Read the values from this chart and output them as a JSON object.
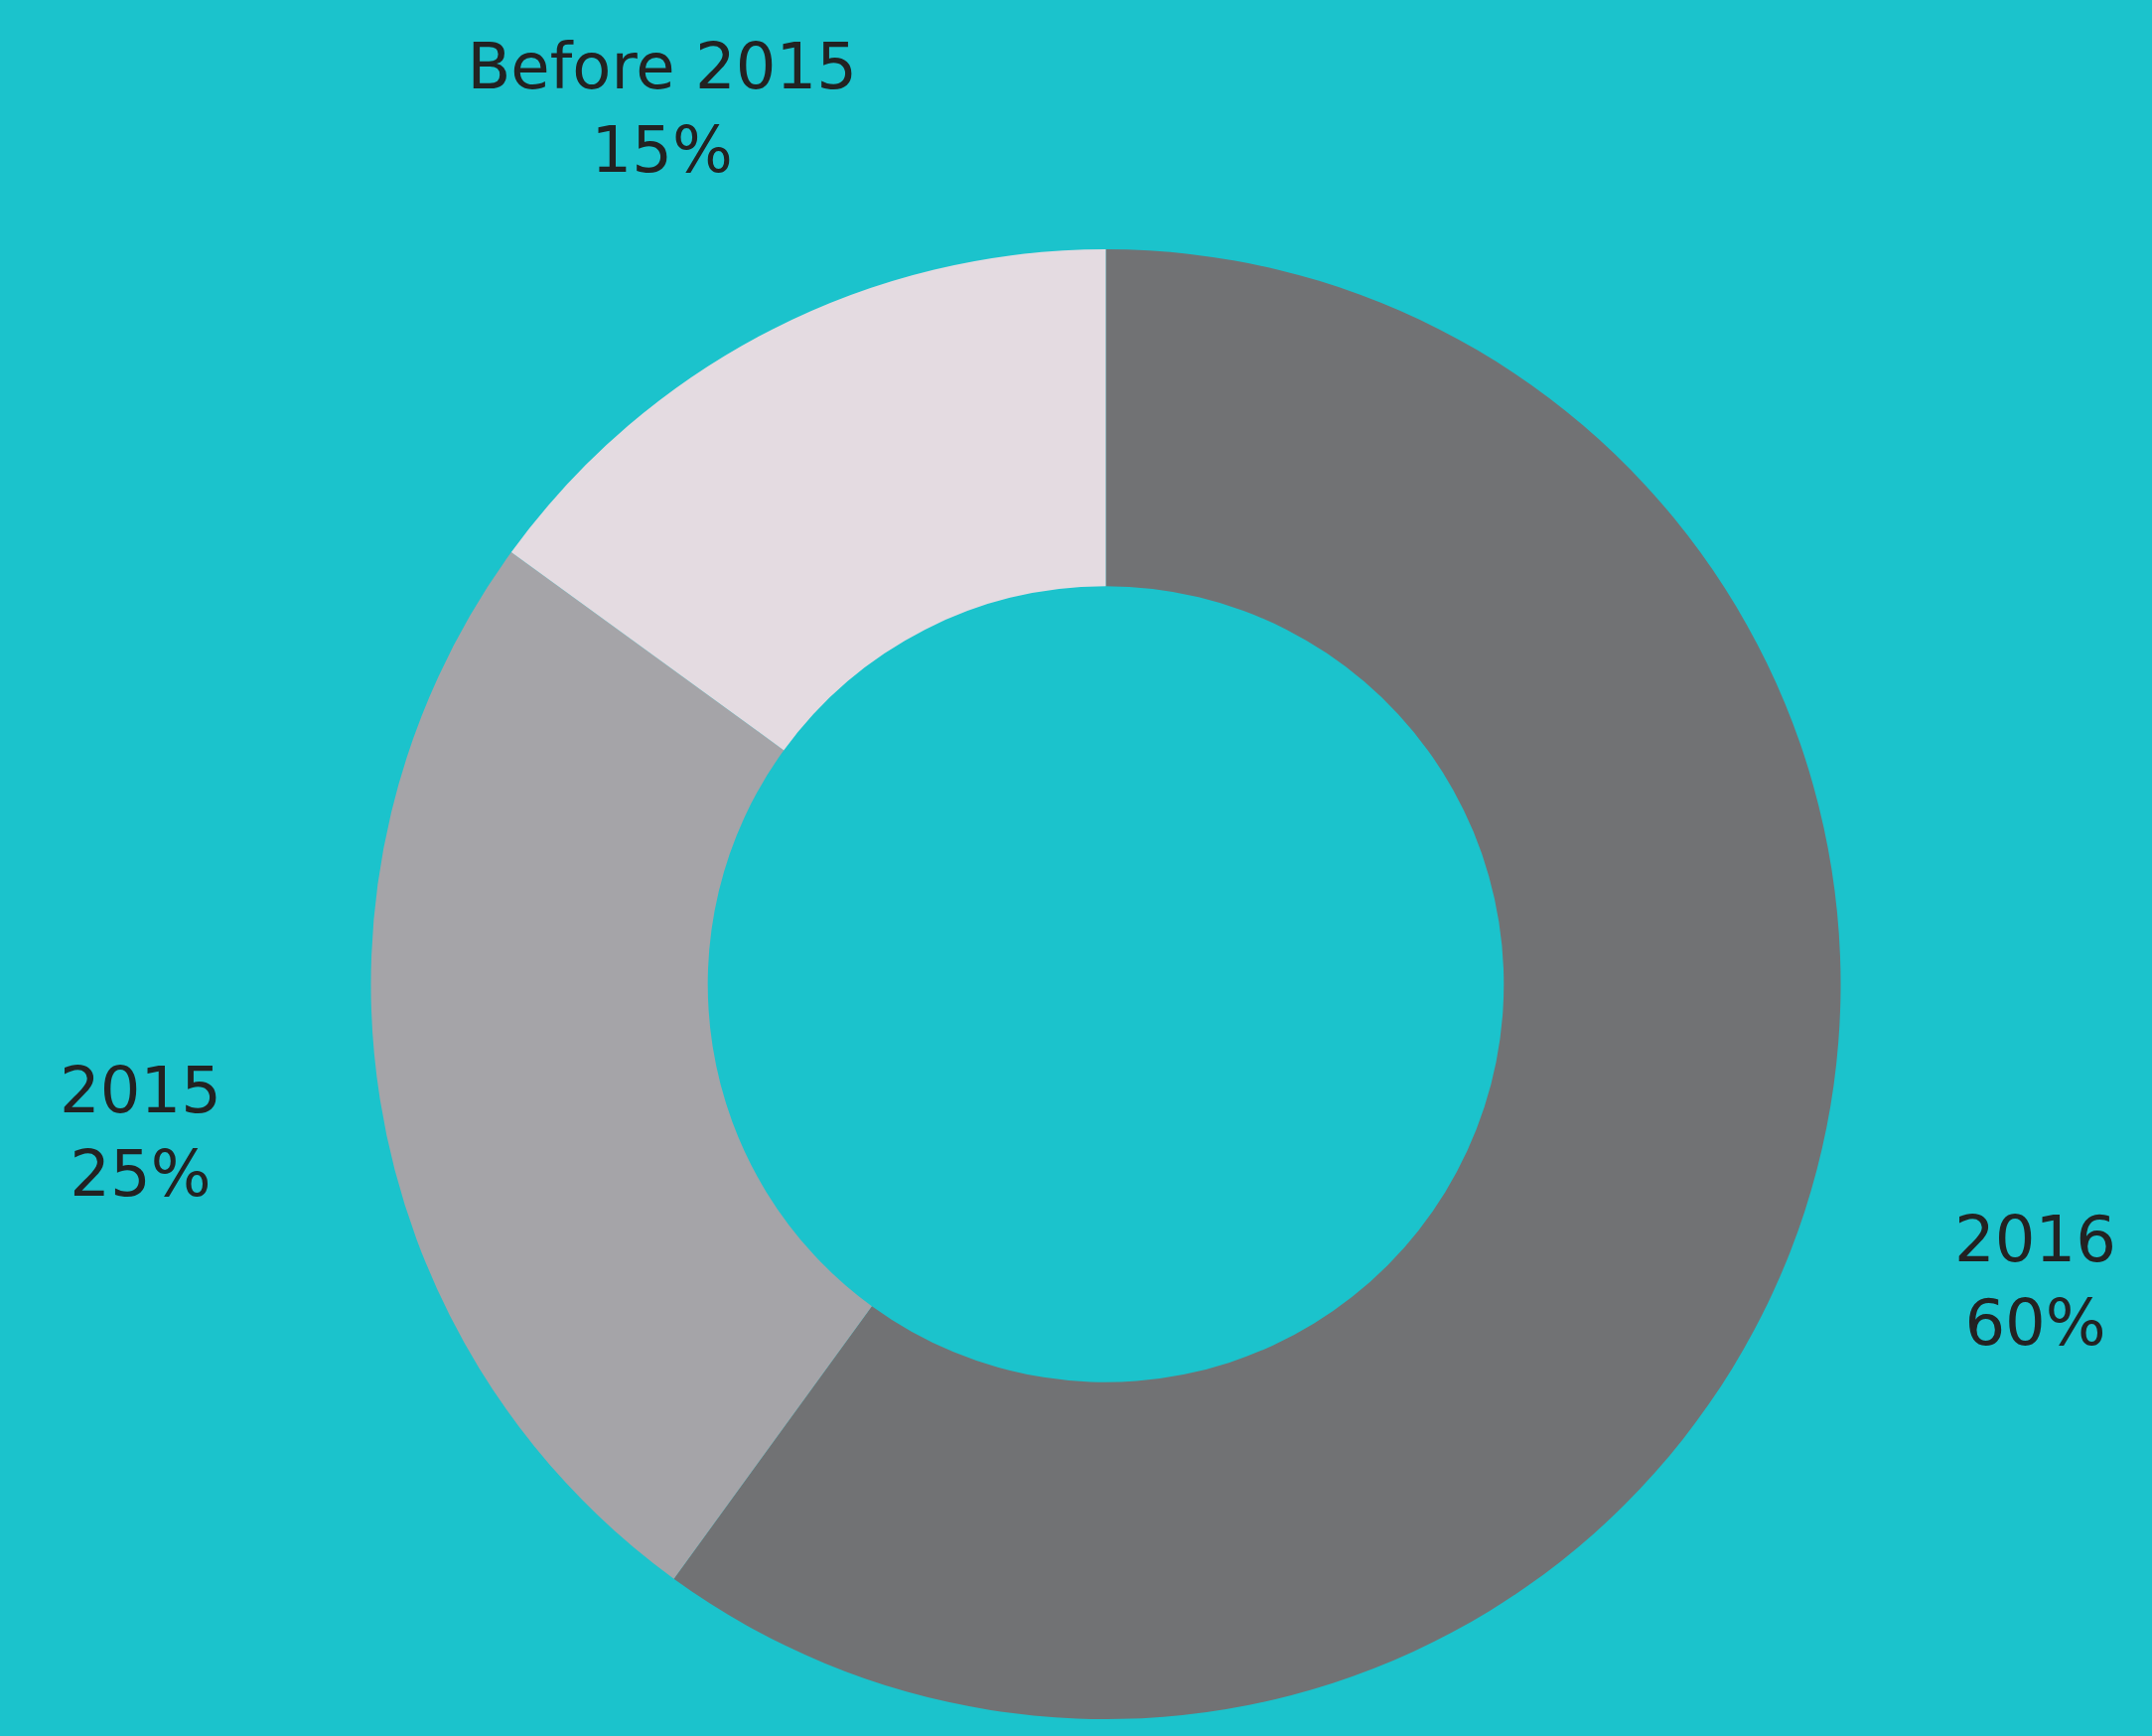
{
  "chart_data": {
    "type": "donut",
    "categories": [
      "2016",
      "2015",
      "Before 2015"
    ],
    "values": [
      60,
      25,
      15
    ],
    "value_labels": [
      "60%",
      "25%",
      "15%"
    ],
    "colors": [
      "#717274",
      "#a5a4a8",
      "#e4dbe1"
    ],
    "legend": false
  }
}
